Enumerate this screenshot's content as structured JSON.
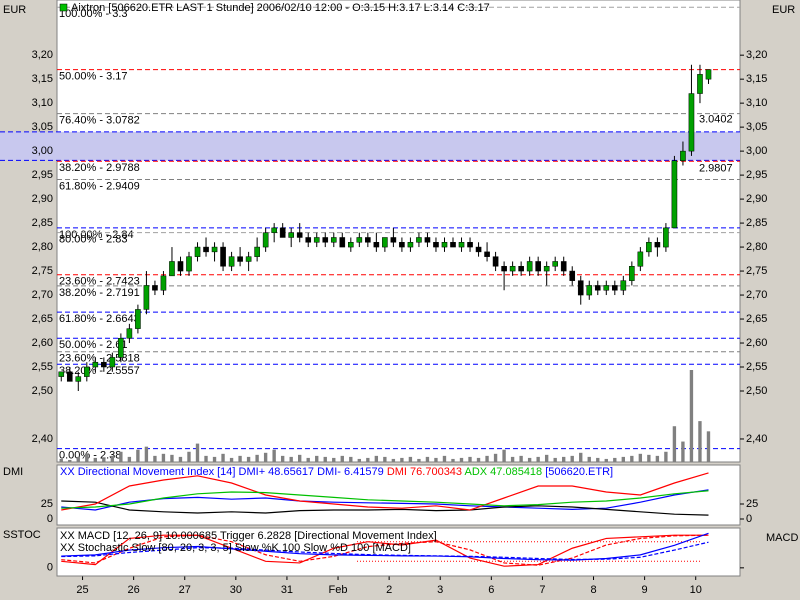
{
  "chart_data": [
    {
      "type": "candlestick",
      "title": "Aixtron [506620.ETR LAST 1 Stunde] 2006/02/10 12:00 - O:3.15 H:3.17 L:3.14 C:3.17",
      "y_label": "EUR",
      "y2_label": "EUR",
      "xlim": [
        -0.5,
        79.7
      ],
      "xticks": [
        {
          "value": 2.5,
          "label": "25"
        },
        {
          "value": 8.5,
          "label": "26"
        },
        {
          "value": 14.5,
          "label": "27"
        },
        {
          "value": 20.5,
          "label": "30"
        },
        {
          "value": 26.5,
          "label": "31"
        },
        {
          "value": 32.5,
          "label": "Feb"
        },
        {
          "value": 38.5,
          "label": "2"
        },
        {
          "value": 44.5,
          "label": "3"
        },
        {
          "value": 50.5,
          "label": "6"
        },
        {
          "value": 56.5,
          "label": "7"
        },
        {
          "value": 62.5,
          "label": "8"
        },
        {
          "value": 68.5,
          "label": "9"
        },
        {
          "value": 74.5,
          "label": "10"
        }
      ],
      "ylim": [
        2.352,
        3.315
      ],
      "yticks": [
        {
          "value": 2.4,
          "label": "2,40"
        },
        {
          "value": 2.5,
          "label": "2,50"
        },
        {
          "value": 2.55,
          "label": "2,55"
        },
        {
          "value": 2.6,
          "label": "2,60"
        },
        {
          "value": 2.65,
          "label": "2,65"
        },
        {
          "value": 2.7,
          "label": "2,70"
        },
        {
          "value": 2.75,
          "label": "2,75"
        },
        {
          "value": 2.8,
          "label": "2,80"
        },
        {
          "value": 2.85,
          "label": "2,85"
        },
        {
          "value": 2.9,
          "label": "2,90"
        },
        {
          "value": 2.95,
          "label": "2,95"
        },
        {
          "value": 3.0,
          "label": "3,00"
        },
        {
          "value": 3.05,
          "label": "3,05"
        },
        {
          "value": 3.1,
          "label": "3,10"
        },
        {
          "value": 3.15,
          "label": "3,15"
        },
        {
          "value": 3.2,
          "label": "3,20"
        }
      ],
      "open": [
        2.53,
        2.54,
        2.52,
        2.53,
        2.55,
        2.56,
        2.55,
        2.57,
        2.61,
        2.63,
        2.67,
        2.72,
        2.71,
        2.74,
        2.77,
        2.75,
        2.78,
        2.8,
        2.79,
        2.8,
        2.76,
        2.78,
        2.77,
        2.78,
        2.8,
        2.83,
        2.84,
        2.82,
        2.83,
        2.82,
        2.81,
        2.82,
        2.81,
        2.82,
        2.8,
        2.81,
        2.82,
        2.81,
        2.8,
        2.82,
        2.81,
        2.8,
        2.81,
        2.82,
        2.81,
        2.8,
        2.81,
        2.8,
        2.81,
        2.8,
        2.79,
        2.78,
        2.76,
        2.75,
        2.76,
        2.75,
        2.77,
        2.75,
        2.76,
        2.77,
        2.75,
        2.73,
        2.7,
        2.72,
        2.71,
        2.72,
        2.71,
        2.73,
        2.76,
        2.79,
        2.81,
        2.8,
        2.84,
        2.98,
        3.0,
        3.12,
        3.15
      ],
      "high": [
        2.54,
        2.55,
        2.54,
        2.56,
        2.57,
        2.57,
        2.58,
        2.62,
        2.64,
        2.68,
        2.75,
        2.73,
        2.75,
        2.8,
        2.78,
        2.79,
        2.81,
        2.82,
        2.81,
        2.81,
        2.79,
        2.8,
        2.79,
        2.82,
        2.84,
        2.85,
        2.85,
        2.84,
        2.85,
        2.83,
        2.83,
        2.83,
        2.83,
        2.83,
        2.82,
        2.83,
        2.83,
        2.83,
        2.82,
        2.84,
        2.82,
        2.82,
        2.83,
        2.83,
        2.82,
        2.82,
        2.82,
        2.82,
        2.82,
        2.81,
        2.81,
        2.79,
        2.77,
        2.77,
        2.77,
        2.78,
        2.78,
        2.77,
        2.78,
        2.78,
        2.76,
        2.74,
        2.73,
        2.73,
        2.73,
        2.73,
        2.74,
        2.77,
        2.8,
        2.82,
        2.82,
        2.85,
        2.99,
        3.02,
        3.18,
        3.18,
        3.17
      ],
      "low": [
        2.52,
        2.52,
        2.5,
        2.52,
        2.54,
        2.54,
        2.54,
        2.56,
        2.6,
        2.62,
        2.66,
        2.7,
        2.7,
        2.74,
        2.74,
        2.74,
        2.77,
        2.78,
        2.77,
        2.75,
        2.75,
        2.76,
        2.75,
        2.77,
        2.79,
        2.81,
        2.82,
        2.8,
        2.81,
        2.8,
        2.8,
        2.8,
        2.8,
        2.8,
        2.79,
        2.8,
        2.8,
        2.79,
        2.79,
        2.8,
        2.79,
        2.79,
        2.8,
        2.8,
        2.79,
        2.79,
        2.8,
        2.79,
        2.79,
        2.78,
        2.77,
        2.75,
        2.71,
        2.74,
        2.74,
        2.74,
        2.74,
        2.72,
        2.75,
        2.74,
        2.72,
        2.68,
        2.69,
        2.7,
        2.7,
        2.7,
        2.7,
        2.72,
        2.75,
        2.78,
        2.78,
        2.79,
        2.84,
        2.97,
        2.99,
        3.1,
        3.14
      ],
      "close": [
        2.54,
        2.52,
        2.53,
        2.55,
        2.56,
        2.55,
        2.57,
        2.61,
        2.63,
        2.67,
        2.72,
        2.71,
        2.74,
        2.77,
        2.75,
        2.78,
        2.8,
        2.79,
        2.8,
        2.76,
        2.78,
        2.77,
        2.78,
        2.8,
        2.83,
        2.84,
        2.82,
        2.83,
        2.82,
        2.81,
        2.82,
        2.81,
        2.82,
        2.8,
        2.81,
        2.82,
        2.81,
        2.8,
        2.82,
        2.81,
        2.8,
        2.81,
        2.82,
        2.81,
        2.8,
        2.81,
        2.8,
        2.81,
        2.8,
        2.79,
        2.78,
        2.76,
        2.75,
        2.76,
        2.75,
        2.77,
        2.75,
        2.76,
        2.77,
        2.75,
        2.73,
        2.7,
        2.72,
        2.71,
        2.72,
        2.71,
        2.73,
        2.76,
        2.79,
        2.81,
        2.8,
        2.84,
        2.98,
        3.0,
        3.12,
        3.16,
        3.17
      ],
      "volume": [
        3,
        2,
        5,
        8,
        4,
        3,
        6,
        10,
        5,
        12,
        15,
        6,
        8,
        7,
        5,
        10,
        18,
        6,
        5,
        8,
        4,
        6,
        5,
        7,
        9,
        12,
        6,
        5,
        7,
        4,
        6,
        5,
        4,
        6,
        5,
        3,
        4,
        6,
        5,
        3,
        4,
        5,
        3,
        5,
        4,
        6,
        3,
        4,
        5,
        4,
        6,
        8,
        12,
        5,
        6,
        4,
        5,
        7,
        4,
        5,
        6,
        9,
        5,
        4,
        3,
        4,
        5,
        6,
        8,
        7,
        6,
        10,
        35,
        20,
        90,
        40,
        30
      ],
      "up_color": "#00a000",
      "down_color": "#000000",
      "volume_color": "#808080",
      "levels": [
        {
          "label": "100.00% - 3.3",
          "value": 3.3,
          "color": "#a0a0a0"
        },
        {
          "label": "50.00% - 3.17",
          "value": 3.17,
          "color": "#ff0000"
        },
        {
          "label": "76.40% - 3.0782",
          "value": 3.0782,
          "color": "#808080"
        },
        {
          "label": "38.20% - 2.9788",
          "value": 2.9788,
          "color": "#ff0000"
        },
        {
          "label": "61.80% - 2.9409",
          "value": 2.9409,
          "color": "#808080"
        },
        {
          "label": "100.00% - 2.84",
          "value": 2.84,
          "color": "#0000ff"
        },
        {
          "label": "80.00% - 2.83",
          "value": 2.83,
          "color": "#a0a0a0"
        },
        {
          "label": "23.60% - 2.7423",
          "value": 2.7423,
          "color": "#ff0000"
        },
        {
          "label": "38.20% - 2.7191",
          "value": 2.7191,
          "color": "#808080"
        },
        {
          "label": "61.80% - 2.6643",
          "value": 2.6643,
          "color": "#0000ff"
        },
        {
          "label": "50.00% - 2.61",
          "value": 2.61,
          "color": "#0000ff"
        },
        {
          "label": "23.60% - 2.5818",
          "value": 2.5818,
          "color": "#808080"
        },
        {
          "label": "38.20% - 2.5557",
          "value": 2.5557,
          "color": "#0000ff"
        },
        {
          "label": "0.00% - 2.38",
          "value": 2.38,
          "color": "#0000ff"
        }
      ],
      "band": [
        2.9807,
        3.0402
      ],
      "band_color": "#c8c8ee"
    },
    {
      "type": "line",
      "label": "DMI",
      "legend": [
        {
          "text": "XX Directional Movement Index [14] DMI+ 48.65617 DMI- 6.41579",
          "color": "#0000ff"
        },
        {
          "text": "DMI 76.700343",
          "color": "#ff0000"
        },
        {
          "text": "ADX 47.085418",
          "color": "#00c000"
        },
        {
          "text": "[506620.ETR]",
          "color": "#0000ff"
        }
      ],
      "xlim": [
        -0.5,
        79.7
      ],
      "x": [
        0,
        4,
        8,
        12,
        16,
        20,
        24,
        28,
        32,
        36,
        40,
        44,
        48,
        52,
        56,
        60,
        64,
        68,
        72,
        76
      ],
      "ylim": [
        -10,
        90
      ],
      "yticks": [
        0,
        25
      ],
      "series": [
        {
          "color": "#0000ff",
          "values": [
            20,
            15,
            28,
            34,
            36,
            33,
            35,
            30,
            28,
            27,
            26,
            25,
            22,
            20,
            18,
            16,
            18,
            28,
            40,
            48.65617
          ]
        },
        {
          "color": "#000000",
          "values": [
            30,
            28,
            15,
            12,
            10,
            12,
            10,
            14,
            15,
            15,
            16,
            14,
            15,
            20,
            22,
            20,
            16,
            12,
            8,
            6.41579
          ]
        },
        {
          "color": "#ff0000",
          "values": [
            15,
            25,
            55,
            65,
            72,
            60,
            40,
            30,
            25,
            20,
            18,
            22,
            15,
            35,
            55,
            55,
            45,
            40,
            60,
            76.700343
          ]
        },
        {
          "color": "#00c000",
          "values": [
            18,
            20,
            25,
            35,
            42,
            45,
            44,
            40,
            36,
            32,
            30,
            28,
            25,
            22,
            24,
            28,
            30,
            35,
            42,
            47.085418
          ]
        }
      ]
    },
    {
      "type": "line",
      "label": "SSTOC",
      "y2_label": "MACD",
      "legend": [
        {
          "text": "XX MACD [12, 26, 9] 10.000685 Trigger 6.2828 [Directional Movement Index]",
          "color": "#0000ff"
        },
        {
          "text": "XX Stochastic Slow [80, 20, 3, 3, 5] Slow %K 100 Slow %D 100 [MACD]",
          "color": "#ff0000"
        }
      ],
      "xlim": [
        -0.5,
        79.7
      ],
      "x": [
        0,
        4,
        8,
        12,
        16,
        20,
        24,
        28,
        32,
        36,
        40,
        44,
        48,
        52,
        56,
        60,
        64,
        68,
        72,
        76
      ],
      "ylim": [
        -25,
        122
      ],
      "yticks": [
        0
      ],
      "y2lim": [
        -7.8,
        12.2
      ],
      "levels": [
        80,
        20
      ],
      "series": [
        {
          "color": "#ff0000",
          "values": [
            20,
            10,
            90,
            100,
            100,
            60,
            20,
            15,
            60,
            80,
            70,
            85,
            30,
            5,
            10,
            60,
            90,
            95,
            100,
            100
          ]
        },
        {
          "color": "#ff0000",
          "dashed": true,
          "values": [
            25,
            15,
            60,
            95,
            100,
            80,
            40,
            20,
            35,
            65,
            75,
            80,
            55,
            15,
            8,
            30,
            70,
            90,
            98,
            100
          ]
        },
        {
          "color": "#0000ff",
          "axis": "y2",
          "values": [
            0.5,
            1,
            3,
            4,
            4.5,
            3.5,
            2.5,
            1.5,
            1,
            0.8,
            0.6,
            0.5,
            0.2,
            -0.5,
            -1,
            -1.2,
            -0.5,
            1,
            5,
            10.000685
          ]
        },
        {
          "color": "#0000ff",
          "axis": "y2",
          "dashed": true,
          "values": [
            0.3,
            0.6,
            2,
            3,
            4,
            3.8,
            3,
            2.2,
            1.6,
            1.1,
            0.8,
            0.6,
            0.4,
            0,
            -0.5,
            -0.9,
            -0.8,
            0,
            3,
            6.2828
          ]
        }
      ]
    }
  ]
}
